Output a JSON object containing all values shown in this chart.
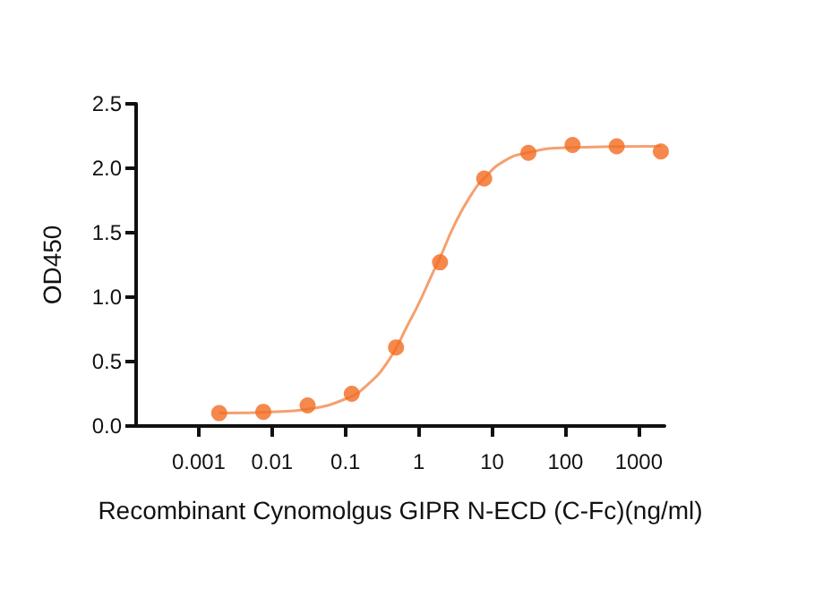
{
  "chart_data": {
    "type": "scatter",
    "xlabel": "Recombinant Cynomolgus GIPR N-ECD (C-Fc)(ng/ml)",
    "ylabel": "OD450",
    "log": "x",
    "xlim": [
      0.00014,
      2240
    ],
    "xticks": [
      0.001,
      0.01,
      0.1,
      1,
      10,
      100,
      1000
    ],
    "ylim": [
      0,
      2.5
    ],
    "yticks": [
      {
        "value": 0,
        "label": "0.0"
      },
      0.5,
      {
        "value": 1,
        "label": "1.0"
      },
      1.5,
      {
        "value": 2,
        "label": "2.0"
      },
      2.5
    ],
    "grid": false,
    "series": [
      {
        "marker": "circle",
        "color": "#f26b21",
        "x": [
          0.0019,
          0.0076,
          0.0305,
          0.122,
          0.49,
          1.95,
          7.8,
          31.25,
          125,
          500,
          2000
        ],
        "values": [
          0.1,
          0.11,
          0.16,
          0.25,
          0.61,
          1.27,
          1.92,
          2.12,
          2.18,
          2.17,
          2.13
        ]
      },
      {
        "type": "line",
        "marker": "none",
        "line_style": "solid",
        "color": "#f5a070",
        "x": [
          0.0019,
          0.01,
          0.03,
          0.1,
          0.2,
          0.4,
          0.7,
          1,
          1.5,
          2,
          3,
          5,
          8,
          15,
          30,
          100,
          2000
        ],
        "values": [
          0.1,
          0.11,
          0.13,
          0.21,
          0.32,
          0.52,
          0.78,
          0.95,
          1.17,
          1.32,
          1.55,
          1.78,
          1.93,
          2.06,
          2.12,
          2.16,
          2.17
        ]
      }
    ]
  }
}
